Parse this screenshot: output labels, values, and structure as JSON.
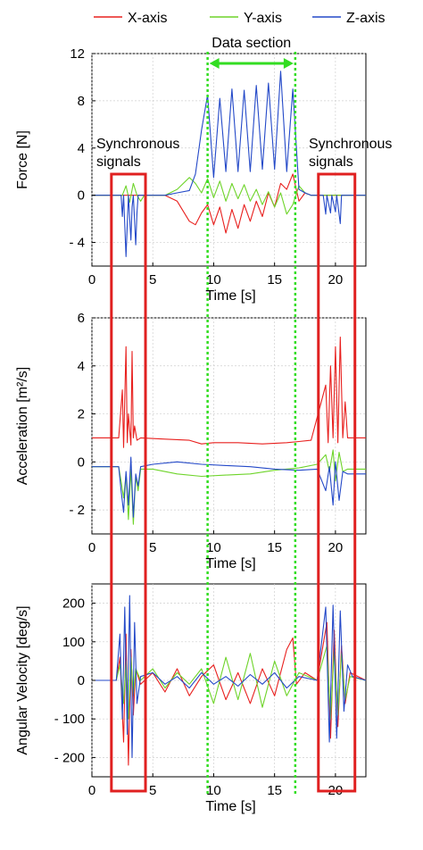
{
  "legend": [
    {
      "name": "X-axis",
      "color": "#e8201e"
    },
    {
      "name": "Y-axis",
      "color": "#6ed42a"
    },
    {
      "name": "Z-axis",
      "color": "#2449c8"
    }
  ],
  "annotations": {
    "data_section": "Data section",
    "sync_left_line1": "Synchronous",
    "sync_left_line2": "signals",
    "sync_right_line1": "Synchronous",
    "sync_right_line2": "signals",
    "data_section_range_s": [
      9.5,
      16.7
    ],
    "sync_left_range_s": [
      1.6,
      4.4
    ],
    "sync_right_range_s": [
      18.6,
      21.6
    ],
    "highlight_box_color": "#e02020",
    "section_line_color": "#33dd22"
  },
  "chart_data": [
    {
      "type": "line",
      "xlabel": "Time [s]",
      "ylabel": "Force [N]",
      "xlim": [
        0,
        22.5
      ],
      "ylim": [
        -6,
        12
      ],
      "xticks": [
        0,
        5,
        10,
        15,
        20
      ],
      "yticks": [
        -4,
        0,
        4,
        8,
        12
      ],
      "ytick_labels": [
        "- 4",
        "0",
        "4",
        "8",
        "12"
      ],
      "grid": true,
      "series": [
        {
          "name": "X-axis",
          "color": "#e8201e",
          "x": [
            0,
            6,
            7,
            8,
            8.5,
            9,
            9.5,
            10,
            10.5,
            11,
            11.5,
            12,
            12.5,
            13,
            13.5,
            14,
            14.5,
            15,
            15.5,
            16,
            16.5,
            17,
            17.5,
            18,
            22.5
          ],
          "y": [
            0,
            0,
            -0.5,
            -2.2,
            -2.5,
            -1.5,
            -0.8,
            -2.5,
            -1.0,
            -3.2,
            -1.2,
            -2.8,
            -0.8,
            -2.2,
            -0.5,
            -1.8,
            0.2,
            -1.0,
            1.0,
            0.5,
            1.8,
            -0.5,
            0.2,
            0,
            0
          ]
        },
        {
          "name": "Y-axis",
          "color": "#6ed42a",
          "x": [
            0,
            2.5,
            2.8,
            3.1,
            3.4,
            3.7,
            4.0,
            4.3,
            6,
            7,
            8,
            8.5,
            9,
            9.5,
            10,
            10.5,
            11,
            11.5,
            12,
            12.5,
            13,
            13.5,
            14,
            14.5,
            15,
            15.5,
            16,
            16.5,
            17,
            17.5,
            18,
            22.5
          ],
          "y": [
            0,
            0,
            0.8,
            -0.6,
            1.0,
            0,
            -0.5,
            0,
            0,
            0.5,
            1.5,
            1.0,
            0.2,
            1.4,
            -0.2,
            1.2,
            -0.5,
            1.0,
            -0.3,
            0.9,
            -0.5,
            0.5,
            -0.8,
            0.3,
            -1.0,
            0.2,
            -1.6,
            -0.8,
            0.8,
            0.2,
            0,
            0
          ]
        },
        {
          "name": "Z-axis",
          "color": "#2449c8",
          "x": [
            0,
            2.4,
            2.5,
            2.6,
            2.8,
            2.9,
            3.0,
            3.2,
            3.3,
            3.4,
            3.6,
            3.7,
            3.8,
            6,
            7,
            8,
            8.5,
            9,
            9.5,
            10,
            10.5,
            11,
            11.5,
            12,
            12.5,
            13,
            13.5,
            14,
            14.5,
            15,
            15.5,
            16,
            16.5,
            17,
            17.5,
            18,
            19,
            19.2,
            19.3,
            19.6,
            19.7,
            20.0,
            20.1,
            20.4,
            20.5,
            22.5
          ],
          "y": [
            0,
            0,
            -1.8,
            0,
            -5.2,
            -2.5,
            0,
            -3.8,
            -1.0,
            0,
            -4.2,
            -1.5,
            0,
            0,
            0.2,
            0.4,
            1.8,
            5.5,
            8.5,
            1.5,
            8.2,
            2.0,
            9.0,
            2.0,
            8.9,
            2.0,
            9.3,
            2.2,
            9.5,
            2.2,
            10.5,
            2.0,
            9.0,
            0.5,
            0.2,
            0,
            0,
            -1.6,
            0,
            -1.5,
            0,
            -1.4,
            0,
            -2.4,
            0,
            0
          ]
        }
      ]
    },
    {
      "type": "line",
      "xlabel": "Time [s]",
      "ylabel": "Acceleration [m²/s]",
      "xlim": [
        0,
        22.5
      ],
      "ylim": [
        -3,
        6
      ],
      "xticks": [
        0,
        5,
        10,
        15,
        20
      ],
      "yticks": [
        -2,
        0,
        2,
        4,
        6
      ],
      "ytick_labels": [
        "- 2",
        "0",
        "2",
        "4",
        "6"
      ],
      "grid": true,
      "series": [
        {
          "name": "X-axis",
          "color": "#e8201e",
          "x": [
            0,
            2.2,
            2.5,
            2.6,
            2.8,
            2.9,
            3.0,
            3.2,
            3.3,
            3.4,
            3.5,
            3.7,
            4.0,
            6,
            8,
            9,
            10,
            12,
            14,
            16,
            17,
            18,
            19.2,
            19.4,
            19.6,
            19.8,
            20.0,
            20.2,
            20.4,
            20.6,
            20.8,
            21,
            22.5
          ],
          "y": [
            1.0,
            1.0,
            3.0,
            0.6,
            4.8,
            0.8,
            2.0,
            0.7,
            4.6,
            1.0,
            1.5,
            0.9,
            1.0,
            0.95,
            0.9,
            0.75,
            0.8,
            0.8,
            0.75,
            0.8,
            0.85,
            0.9,
            3.2,
            0.8,
            4.0,
            1.0,
            4.8,
            0.8,
            5.2,
            1.0,
            2.5,
            1.0,
            1.0
          ]
        },
        {
          "name": "Y-axis",
          "color": "#6ed42a",
          "x": [
            0,
            2.2,
            2.4,
            2.6,
            2.8,
            3.0,
            3.2,
            3.4,
            3.6,
            3.8,
            4.0,
            5,
            7,
            9,
            11,
            13,
            15,
            17,
            18.5,
            19.2,
            19.5,
            19.8,
            20.0,
            20.3,
            20.6,
            21,
            22.5
          ],
          "y": [
            -0.2,
            -0.2,
            -0.8,
            -1.5,
            -0.5,
            -2.4,
            -0.3,
            -2.6,
            -0.6,
            -1.2,
            -0.3,
            -0.3,
            -0.5,
            -0.6,
            -0.55,
            -0.5,
            -0.35,
            -0.25,
            -0.1,
            0.3,
            -0.4,
            0.5,
            -0.8,
            0.4,
            -0.4,
            -0.3,
            -0.3
          ]
        },
        {
          "name": "Z-axis",
          "color": "#2449c8",
          "x": [
            0,
            2.2,
            2.4,
            2.6,
            2.8,
            3.0,
            3.2,
            3.4,
            3.6,
            3.8,
            4.0,
            5,
            7,
            9,
            11,
            13,
            15,
            17,
            18.5,
            19.2,
            19.5,
            19.8,
            20.0,
            20.3,
            20.6,
            21,
            22.5
          ],
          "y": [
            -0.2,
            -0.2,
            -1.2,
            -2.1,
            -0.4,
            -1.8,
            0.2,
            -2.3,
            -0.5,
            -1.0,
            -0.2,
            -0.1,
            0.0,
            -0.1,
            -0.15,
            -0.2,
            -0.3,
            -0.35,
            -0.3,
            -1.2,
            -0.2,
            -1.8,
            0.0,
            -1.6,
            -0.4,
            -0.5,
            -0.5
          ]
        }
      ]
    },
    {
      "type": "line",
      "xlabel": "Time [s]",
      "ylabel": "Angular Velocity [deg/s]",
      "xlim": [
        0,
        22.5
      ],
      "ylim": [
        -250,
        250
      ],
      "xticks": [
        0,
        5,
        10,
        15,
        20
      ],
      "yticks": [
        -200,
        -100,
        0,
        100,
        200
      ],
      "ytick_labels": [
        "- 200",
        "- 100",
        "0",
        "100",
        "200"
      ],
      "grid": true,
      "series": [
        {
          "name": "X-axis",
          "color": "#e8201e",
          "x": [
            0,
            2.0,
            2.3,
            2.6,
            2.8,
            3.0,
            3.2,
            3.4,
            3.6,
            4.0,
            5,
            6,
            7,
            8,
            9,
            10,
            11,
            12,
            13,
            14,
            15,
            16,
            16.5,
            16.8,
            17.5,
            18.5,
            19.3,
            19.6,
            19.9,
            20.2,
            20.5,
            20.8,
            21.2,
            22.5
          ],
          "y": [
            0,
            0,
            60,
            -160,
            120,
            -220,
            80,
            -90,
            30,
            -10,
            20,
            -30,
            30,
            -40,
            10,
            40,
            -50,
            20,
            -60,
            30,
            -40,
            80,
            110,
            -10,
            20,
            0,
            150,
            -150,
            130,
            -120,
            90,
            -60,
            20,
            0
          ]
        },
        {
          "name": "Y-axis",
          "color": "#6ed42a",
          "x": [
            0,
            2.0,
            2.3,
            2.6,
            2.8,
            3.0,
            3.2,
            3.4,
            3.6,
            4.0,
            5,
            6,
            7,
            8,
            9,
            10,
            11,
            12,
            13,
            14,
            15,
            16,
            17,
            18.5,
            19.3,
            19.6,
            19.9,
            20.2,
            20.5,
            20.8,
            21.2,
            22.5
          ],
          "y": [
            0,
            0,
            40,
            -60,
            50,
            -100,
            60,
            -40,
            30,
            0,
            30,
            -20,
            20,
            -10,
            30,
            -60,
            60,
            -50,
            70,
            -70,
            50,
            -40,
            20,
            0,
            90,
            -100,
            80,
            -90,
            70,
            -50,
            10,
            0
          ]
        },
        {
          "name": "Z-axis",
          "color": "#2449c8",
          "x": [
            0,
            2.0,
            2.3,
            2.5,
            2.7,
            2.9,
            3.1,
            3.3,
            3.5,
            3.7,
            4.0,
            5,
            6,
            7,
            8,
            9,
            10,
            11,
            12,
            13,
            14,
            15,
            16,
            17,
            18.5,
            19.2,
            19.5,
            19.8,
            20.1,
            20.4,
            20.7,
            21.0,
            21.4,
            22.5
          ],
          "y": [
            0,
            0,
            120,
            -100,
            190,
            -140,
            220,
            -200,
            150,
            -60,
            10,
            20,
            -10,
            10,
            -20,
            20,
            -10,
            10,
            -15,
            15,
            -10,
            20,
            -20,
            10,
            0,
            190,
            -160,
            195,
            -150,
            180,
            -80,
            40,
            10,
            0
          ]
        }
      ]
    }
  ]
}
